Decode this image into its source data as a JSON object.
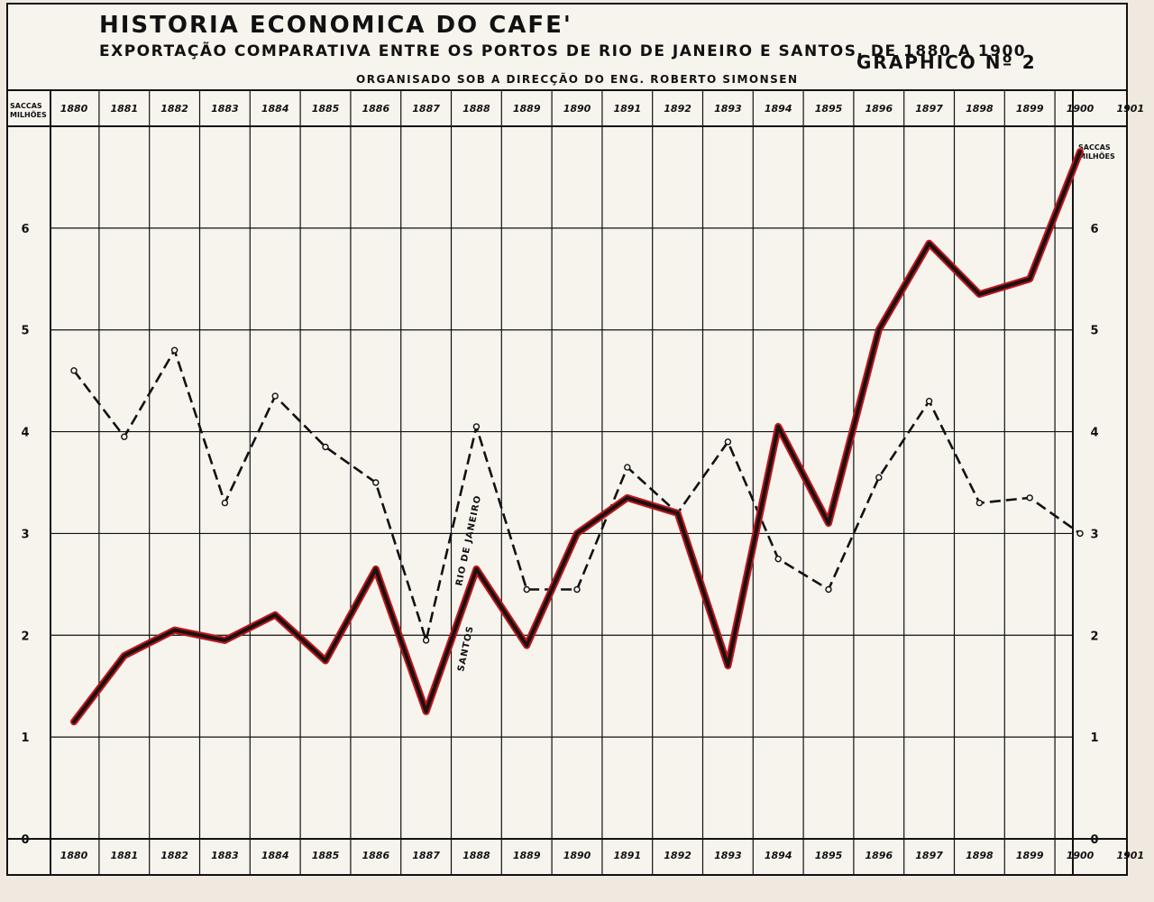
{
  "header": {
    "title": "HISTORIA ECONOMICA DO CAFE'",
    "subtitle": "EXPORTAÇÃO COMPARATIVA ENTRE OS PORTOS DE RIO DE JANEIRO E SANTOS, DE 1880 A 1900",
    "organizer": "ORGANISADO SOB A DIRECÇÃO DO ENG. ROBERTO SIMONSEN",
    "graph_number": "GRAPHICO Nº 2"
  },
  "axes": {
    "left_unit_line1": "SACCAS",
    "left_unit_line2": "MILHÕES",
    "right_unit_line1": "SACCAS",
    "right_unit_line2": "MILHÕES"
  },
  "colors": {
    "paper": "#f7f4ee",
    "ink": "#111111",
    "santos_glow": "#c0161b"
  },
  "chart_data": {
    "type": "line",
    "title": "HISTORIA ECONOMICA DO CAFE'",
    "subtitle": "EXPORTAÇÃO COMPARATIVA ENTRE OS PORTOS DE RIO DE JANEIRO E SANTOS, DE 1880 A 1900",
    "ylabel": "SACCAS MILHÕES",
    "ylim": [
      0,
      7
    ],
    "yticks": [
      "0",
      "1",
      "2",
      "3",
      "4",
      "5",
      "6"
    ],
    "grid": true,
    "categories": [
      "1880",
      "1881",
      "1882",
      "1883",
      "1884",
      "1885",
      "1886",
      "1887",
      "1888",
      "1889",
      "1890",
      "1891",
      "1892",
      "1893",
      "1894",
      "1895",
      "1896",
      "1897",
      "1898",
      "1899",
      "1900",
      "1901"
    ],
    "series": [
      {
        "name": "RIO DE JANEIRO",
        "style": "dashed",
        "values": [
          4.6,
          3.95,
          4.8,
          3.3,
          4.35,
          3.85,
          3.5,
          1.95,
          4.05,
          2.45,
          2.45,
          3.65,
          3.2,
          3.9,
          2.75,
          2.45,
          3.55,
          4.3,
          3.3,
          3.35,
          3.0,
          null
        ]
      },
      {
        "name": "SANTOS",
        "style": "solid",
        "values": [
          1.15,
          1.8,
          2.05,
          1.95,
          2.2,
          1.75,
          2.65,
          1.25,
          2.65,
          1.9,
          3.0,
          3.35,
          3.2,
          1.7,
          4.05,
          3.1,
          5.0,
          5.85,
          5.35,
          5.5,
          6.75,
          null
        ]
      }
    ]
  }
}
